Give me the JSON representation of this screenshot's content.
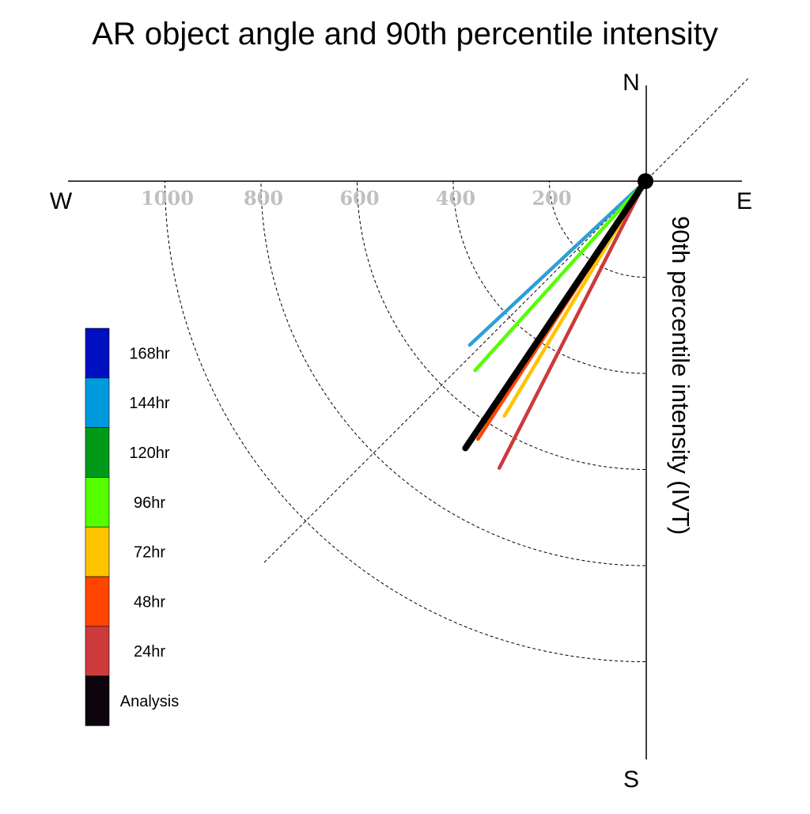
{
  "chart_data": {
    "type": "polar-vector",
    "title": "AR object angle and 90th percentile intensity",
    "ylabel": "90th percentile intensity (IVT)",
    "compass": {
      "north": "N",
      "south": "S",
      "east": "E",
      "west": "W"
    },
    "radial_ticks": [
      200,
      400,
      600,
      800,
      1000
    ],
    "radial_tick_labels": [
      "200",
      "400",
      "600",
      "800",
      "1000"
    ],
    "radial_range": [
      0,
      1200
    ],
    "reference_angle_deg": 225,
    "grid": true,
    "legend_position": "left",
    "legend": [
      {
        "label": "168hr",
        "color": "#0010c0"
      },
      {
        "label": "144hr",
        "color": "#0099dd"
      },
      {
        "label": "120hr",
        "color": "#009a1a"
      },
      {
        "label": "96hr",
        "color": "#55ff00"
      },
      {
        "label": "72hr",
        "color": "#ffc300"
      },
      {
        "label": "48hr",
        "color": "#ff4500"
      },
      {
        "label": "24hr",
        "color": "#cc3a3c"
      },
      {
        "label": "Analysis",
        "color": "#0d040d"
      }
    ],
    "series": [
      {
        "name": "144hr",
        "intensity": 500,
        "angle_deg": 227,
        "color": "#2d9fd6"
      },
      {
        "name": "96hr",
        "intensity": 530,
        "angle_deg": 222,
        "color": "#55ff00"
      },
      {
        "name": "72hr",
        "intensity": 570,
        "angle_deg": 211,
        "color": "#ffc300"
      },
      {
        "name": "48hr",
        "intensity": 640,
        "angle_deg": 213,
        "color": "#ff4500"
      },
      {
        "name": "24hr",
        "intensity": 670,
        "angle_deg": 207,
        "color": "#cc3a3c"
      },
      {
        "name": "Analysis",
        "intensity": 670,
        "angle_deg": 214,
        "color": "#000000"
      }
    ]
  }
}
